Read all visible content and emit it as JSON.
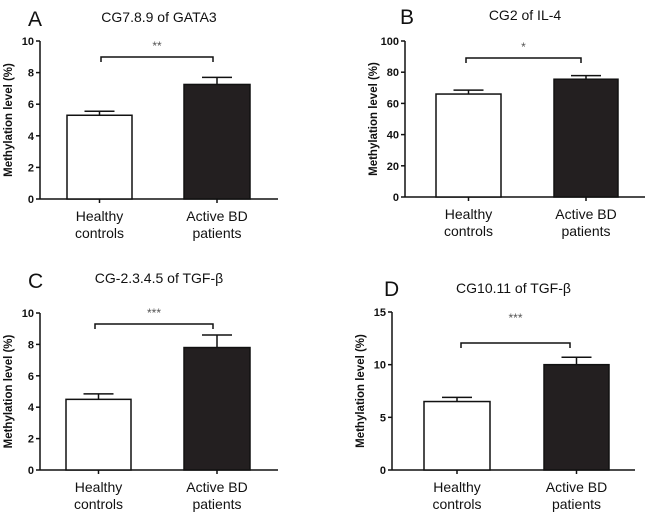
{
  "chart_data": [
    {
      "type": "bar",
      "panel": "A",
      "title": "CG7.8.9 of GATA3",
      "ylabel": "Methylation level (%)",
      "categories": [
        "Healthy controls",
        "Active BD patients"
      ],
      "category_lines": [
        [
          "Healthy",
          "controls"
        ],
        [
          "Active BD",
          "patients"
        ]
      ],
      "values": [
        5.3,
        7.25
      ],
      "errors": [
        0.25,
        0.45
      ],
      "fills": [
        "#ffffff",
        "#231f20"
      ],
      "ylim": [
        0,
        10
      ],
      "yticks": [
        0,
        2,
        4,
        6,
        8,
        10
      ],
      "significance": "**",
      "grid": false
    },
    {
      "type": "bar",
      "panel": "B",
      "title": "CG2 of IL-4",
      "ylabel": "Methylation level (%)",
      "categories": [
        "Healthy controls",
        "Active BD patients"
      ],
      "category_lines": [
        [
          "Healthy",
          "controls"
        ],
        [
          "Active BD",
          "patients"
        ]
      ],
      "values": [
        66,
        75.5
      ],
      "errors": [
        2.5,
        2.3
      ],
      "fills": [
        "#ffffff",
        "#231f20"
      ],
      "ylim": [
        0,
        100
      ],
      "yticks": [
        0,
        20,
        40,
        60,
        80,
        100
      ],
      "significance": "*",
      "grid": false
    },
    {
      "type": "bar",
      "panel": "C",
      "title": "CG-2.3.4.5 of TGF-β",
      "ylabel": "Methylation level (%)",
      "categories": [
        "Healthy controls",
        "Active BD patients"
      ],
      "category_lines": [
        [
          "Healthy",
          "controls"
        ],
        [
          "Active BD",
          "patients"
        ]
      ],
      "values": [
        4.5,
        7.8
      ],
      "errors": [
        0.35,
        0.8
      ],
      "fills": [
        "#ffffff",
        "#231f20"
      ],
      "ylim": [
        0,
        10
      ],
      "yticks": [
        0,
        2,
        4,
        6,
        8,
        10
      ],
      "significance": "***",
      "grid": false
    },
    {
      "type": "bar",
      "panel": "D",
      "title": "CG10.11 of TGF-β",
      "ylabel": "Methylation level (%)",
      "categories": [
        "Healthy controls",
        "Active BD patients"
      ],
      "category_lines": [
        [
          "Healthy",
          "controls"
        ],
        [
          "Active BD",
          "patients"
        ]
      ],
      "values": [
        6.5,
        10.0
      ],
      "errors": [
        0.4,
        0.7
      ],
      "fills": [
        "#ffffff",
        "#231f20"
      ],
      "ylim": [
        0,
        15
      ],
      "yticks": [
        0,
        5,
        10,
        15
      ],
      "significance": "***",
      "grid": false
    }
  ]
}
